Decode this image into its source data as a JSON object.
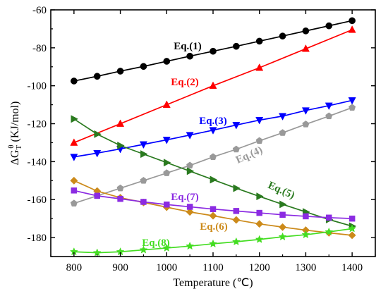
{
  "chart_data": {
    "type": "line",
    "xlabel": "Temperature (℃)",
    "ylabel_main": "ΔG",
    "ylabel_sub": "T",
    "ylabel_sup": "θ",
    "ylabel_unit": " (KJ/mol)",
    "xlim": [
      750,
      1450
    ],
    "ylim": [
      -190,
      -60
    ],
    "xticks": [
      800,
      900,
      1000,
      1100,
      1200,
      1300,
      1400
    ],
    "yticks": [
      -180,
      -160,
      -140,
      -120,
      -100,
      -80,
      -60
    ],
    "grid": false,
    "legend": "inline labels",
    "series": [
      {
        "name": "Eq.(1)",
        "color": "#000000",
        "marker": "circle",
        "x": [
          800,
          850,
          900,
          950,
          1000,
          1050,
          1100,
          1150,
          1200,
          1250,
          1300,
          1350,
          1400
        ],
        "y": [
          -97.5,
          -95,
          -92.3,
          -89.8,
          -87.1,
          -84.4,
          -81.8,
          -79.2,
          -76.5,
          -73.8,
          -71.1,
          -68.4,
          -65.7
        ]
      },
      {
        "name": "Eq.(2)",
        "color": "#ff0000",
        "marker": "triangle-up",
        "x": [
          800,
          900,
          1000,
          1100,
          1200,
          1300,
          1400
        ],
        "y": [
          -130,
          -120,
          -110,
          -100,
          -90.5,
          -80.5,
          -70.5
        ]
      },
      {
        "name": "Eq.(3)",
        "color": "#0000ff",
        "marker": "triangle-down",
        "x": [
          800,
          850,
          900,
          950,
          1000,
          1050,
          1100,
          1150,
          1200,
          1250,
          1300,
          1350,
          1400
        ],
        "y": [
          -137.5,
          -135.5,
          -133.3,
          -130.9,
          -128.5,
          -126,
          -123.4,
          -120.7,
          -118.1,
          -116,
          -113,
          -110.5,
          -107.7
        ]
      },
      {
        "name": "Eq.(4)",
        "color": "#999999",
        "marker": "pentagon",
        "x": [
          800,
          850,
          900,
          950,
          1000,
          1050,
          1100,
          1150,
          1200,
          1250,
          1300,
          1350,
          1400
        ],
        "y": [
          -162,
          -158,
          -154,
          -150,
          -146,
          -142,
          -137.5,
          -133.5,
          -129,
          -124.8,
          -120.3,
          -116,
          -111.5
        ]
      },
      {
        "name": "Eq.(5)",
        "color": "#2a7a1f",
        "marker": "triangle-right",
        "x": [
          800,
          850,
          900,
          950,
          1000,
          1050,
          1100,
          1150,
          1200,
          1250,
          1300,
          1350,
          1400
        ],
        "y": [
          -117.5,
          -125.5,
          -131.5,
          -136,
          -140.5,
          -145,
          -149.5,
          -154,
          -158.3,
          -162.5,
          -166.5,
          -170.5,
          -174
        ]
      },
      {
        "name": "Eq.(6)",
        "color": "#cc8a1a",
        "marker": "diamond",
        "x": [
          800,
          850,
          900,
          950,
          1000,
          1050,
          1100,
          1150,
          1200,
          1250,
          1300,
          1350,
          1400
        ],
        "y": [
          -150,
          -155.5,
          -159,
          -161.5,
          -164,
          -166.5,
          -168.5,
          -170.7,
          -172.8,
          -174.5,
          -176.1,
          -177.5,
          -178.8
        ]
      },
      {
        "name": "Eq.(7)",
        "color": "#8b2be2",
        "marker": "square",
        "x": [
          800,
          850,
          900,
          950,
          1000,
          1050,
          1100,
          1150,
          1200,
          1250,
          1300,
          1350,
          1400
        ],
        "y": [
          -155.2,
          -158,
          -159.6,
          -161.2,
          -162.6,
          -163.8,
          -165,
          -166,
          -167,
          -168,
          -168.8,
          -169.5,
          -170
        ]
      },
      {
        "name": "Eq.(8)",
        "color": "#44dd22",
        "marker": "star",
        "x": [
          800,
          850,
          900,
          950,
          1000,
          1050,
          1100,
          1150,
          1200,
          1250,
          1300,
          1350,
          1400
        ],
        "y": [
          -187.5,
          -188,
          -187.5,
          -186.5,
          -185.5,
          -184.5,
          -183.3,
          -182.2,
          -181,
          -179.6,
          -178.5,
          -177,
          -175.3
        ]
      }
    ]
  }
}
